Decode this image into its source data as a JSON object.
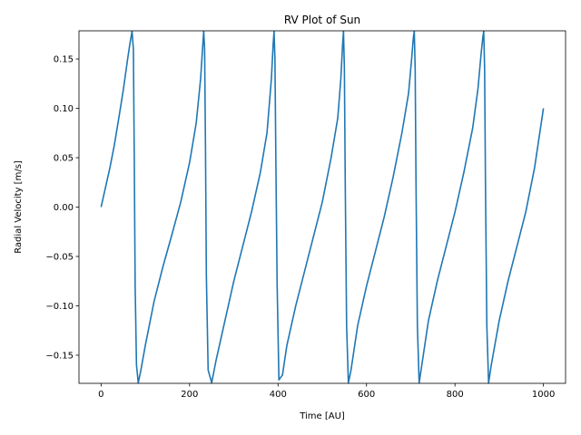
{
  "chart_data": {
    "type": "line",
    "title": "RV Plot of Sun",
    "xlabel": "Time [AU]",
    "ylabel": "Radial Velocity [m/s]",
    "xlim": [
      -50,
      1050
    ],
    "ylim": [
      -0.1785,
      0.1785
    ],
    "xticks": [
      0,
      200,
      400,
      600,
      800,
      1000
    ],
    "xtick_labels": [
      "0",
      "200",
      "400",
      "600",
      "800",
      "1000"
    ],
    "yticks": [
      -0.15,
      -0.1,
      -0.05,
      0.0,
      0.05,
      0.1,
      0.15
    ],
    "ytick_labels": [
      "−0.15",
      "−0.10",
      "−0.05",
      "0.00",
      "0.05",
      "0.10",
      "0.15"
    ],
    "grid": false,
    "series": [
      {
        "color": "#1f77b4",
        "x": [
          0,
          10,
          20,
          30,
          40,
          50,
          60,
          65,
          70,
          73,
          75,
          77,
          80,
          84,
          90,
          100,
          120,
          140,
          160,
          180,
          200,
          215,
          225,
          230,
          232,
          234,
          236,
          238,
          242,
          250,
          260,
          280,
          300,
          320,
          340,
          360,
          375,
          385,
          389,
          391,
          393,
          395,
          398,
          402,
          410,
          420,
          440,
          460,
          480,
          500,
          520,
          535,
          542,
          546,
          548,
          550,
          552,
          555,
          559,
          565,
          580,
          600,
          620,
          640,
          660,
          680,
          695,
          702,
          706,
          708,
          710,
          712,
          715,
          719,
          725,
          740,
          760,
          780,
          800,
          820,
          840,
          852,
          859,
          863,
          865,
          867,
          869,
          872,
          876,
          882,
          900,
          920,
          940,
          960,
          980,
          1000
        ],
        "y": [
          0.0,
          0.02,
          0.04,
          0.063,
          0.09,
          0.118,
          0.15,
          0.165,
          0.178,
          0.16,
          0.05,
          -0.08,
          -0.16,
          -0.178,
          -0.165,
          -0.14,
          -0.095,
          -0.06,
          -0.028,
          0.005,
          0.045,
          0.085,
          0.13,
          0.165,
          0.178,
          0.16,
          0.06,
          -0.07,
          -0.165,
          -0.178,
          -0.155,
          -0.115,
          -0.075,
          -0.04,
          -0.005,
          0.035,
          0.075,
          0.13,
          0.165,
          0.178,
          0.15,
          0.05,
          -0.08,
          -0.175,
          -0.17,
          -0.14,
          -0.1,
          -0.065,
          -0.03,
          0.005,
          0.05,
          0.09,
          0.13,
          0.165,
          0.178,
          0.14,
          0.02,
          -0.12,
          -0.178,
          -0.165,
          -0.12,
          -0.08,
          -0.045,
          -0.01,
          0.03,
          0.075,
          0.115,
          0.15,
          0.172,
          0.178,
          0.14,
          0.02,
          -0.12,
          -0.178,
          -0.16,
          -0.115,
          -0.075,
          -0.04,
          -0.005,
          0.035,
          0.08,
          0.12,
          0.155,
          0.172,
          0.178,
          0.14,
          0.02,
          -0.12,
          -0.178,
          -0.16,
          -0.115,
          -0.075,
          -0.04,
          -0.005,
          0.04,
          0.1
        ]
      }
    ]
  }
}
